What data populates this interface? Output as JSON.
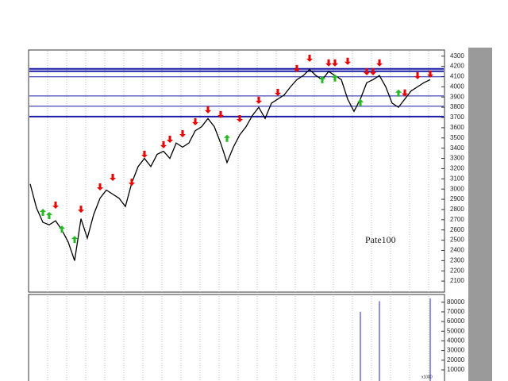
{
  "chart_data": {
    "type": "line",
    "values": [
      3050,
      2815,
      2675,
      2650,
      2690,
      2600,
      2480,
      2300,
      2710,
      2520,
      2750,
      2910,
      2990,
      2950,
      2910,
      2830,
      3060,
      3220,
      3300,
      3220,
      3340,
      3370,
      3300,
      3450,
      3410,
      3450,
      3570,
      3610,
      3690,
      3610,
      3450,
      3260,
      3410,
      3530,
      3610,
      3720,
      3800,
      3690,
      3840,
      3880,
      3920,
      4000,
      4070,
      4110,
      4170,
      4110,
      4070,
      4150,
      4110,
      4070,
      3880,
      3760,
      3880,
      4040,
      4070,
      4110,
      4000,
      3840,
      3800,
      3880,
      3960,
      4000,
      4040,
      4070
    ],
    "color": "#000000",
    "ylim": [
      2000,
      4360
    ],
    "yticks": [
      2100,
      2200,
      2300,
      2400,
      2500,
      2600,
      2700,
      2800,
      2900,
      3000,
      3100,
      3200,
      3300,
      3400,
      3500,
      3600,
      3700,
      3800,
      3900,
      4000,
      4100,
      4200,
      4300
    ],
    "hlines": [
      4176,
      4152,
      4098,
      3911,
      3810,
      3709
    ],
    "hline_widths": [
      2,
      2,
      1,
      1,
      1,
      2
    ],
    "hline_color": "#1a1aa6",
    "sell_signals": {
      "color": "#ee0000",
      "x": [
        4,
        8,
        11,
        13,
        16,
        18,
        21,
        22,
        24,
        26,
        28,
        30,
        33,
        36,
        39,
        42,
        44,
        47,
        48,
        50,
        53,
        54,
        55,
        59,
        61,
        63
      ],
      "values": [
        2807,
        2768,
        2986,
        3079,
        3032,
        3305,
        3398,
        3452,
        3506,
        3623,
        3740,
        3693,
        3654,
        3833,
        3911,
        4144,
        4245,
        4199,
        4199,
        4214,
        4113,
        4113,
        4199,
        3905,
        4074,
        4090
      ]
    },
    "buy_signals": {
      "color": "#22bb22",
      "x": [
        2,
        3,
        5,
        7,
        31,
        46,
        48,
        52,
        58
      ],
      "values": [
        2807,
        2776,
        2643,
        2542,
        3531,
        4105,
        4121,
        3880,
        3974
      ]
    },
    "annotation": "Pate100",
    "volume": {
      "color": "#2222cc",
      "x": [
        52,
        55,
        63
      ],
      "values": [
        70000,
        81000,
        84000
      ],
      "ylim": [
        -1500,
        88000
      ],
      "yticks": [
        10000,
        20000,
        30000,
        40000,
        50000,
        60000,
        70000,
        80000
      ],
      "unit": "x1000"
    }
  }
}
